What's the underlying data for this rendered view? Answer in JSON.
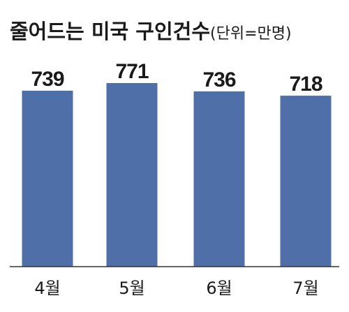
{
  "chart_data": {
    "type": "bar",
    "title": "줄어드는 미국 구인건수",
    "subtitle": "(단위=만명)",
    "categories": [
      "4월",
      "5월",
      "6월",
      "7월"
    ],
    "values": [
      739,
      771,
      736,
      718
    ],
    "value_labels": [
      "739",
      "771",
      "736",
      "718"
    ],
    "xlabel": "",
    "ylabel": "",
    "ylim": [
      0,
      771
    ],
    "grid": false,
    "legend": "none",
    "colors": {
      "bar": "#4f6fa8",
      "text": "#1a1a1a",
      "axis": "#333333"
    }
  }
}
